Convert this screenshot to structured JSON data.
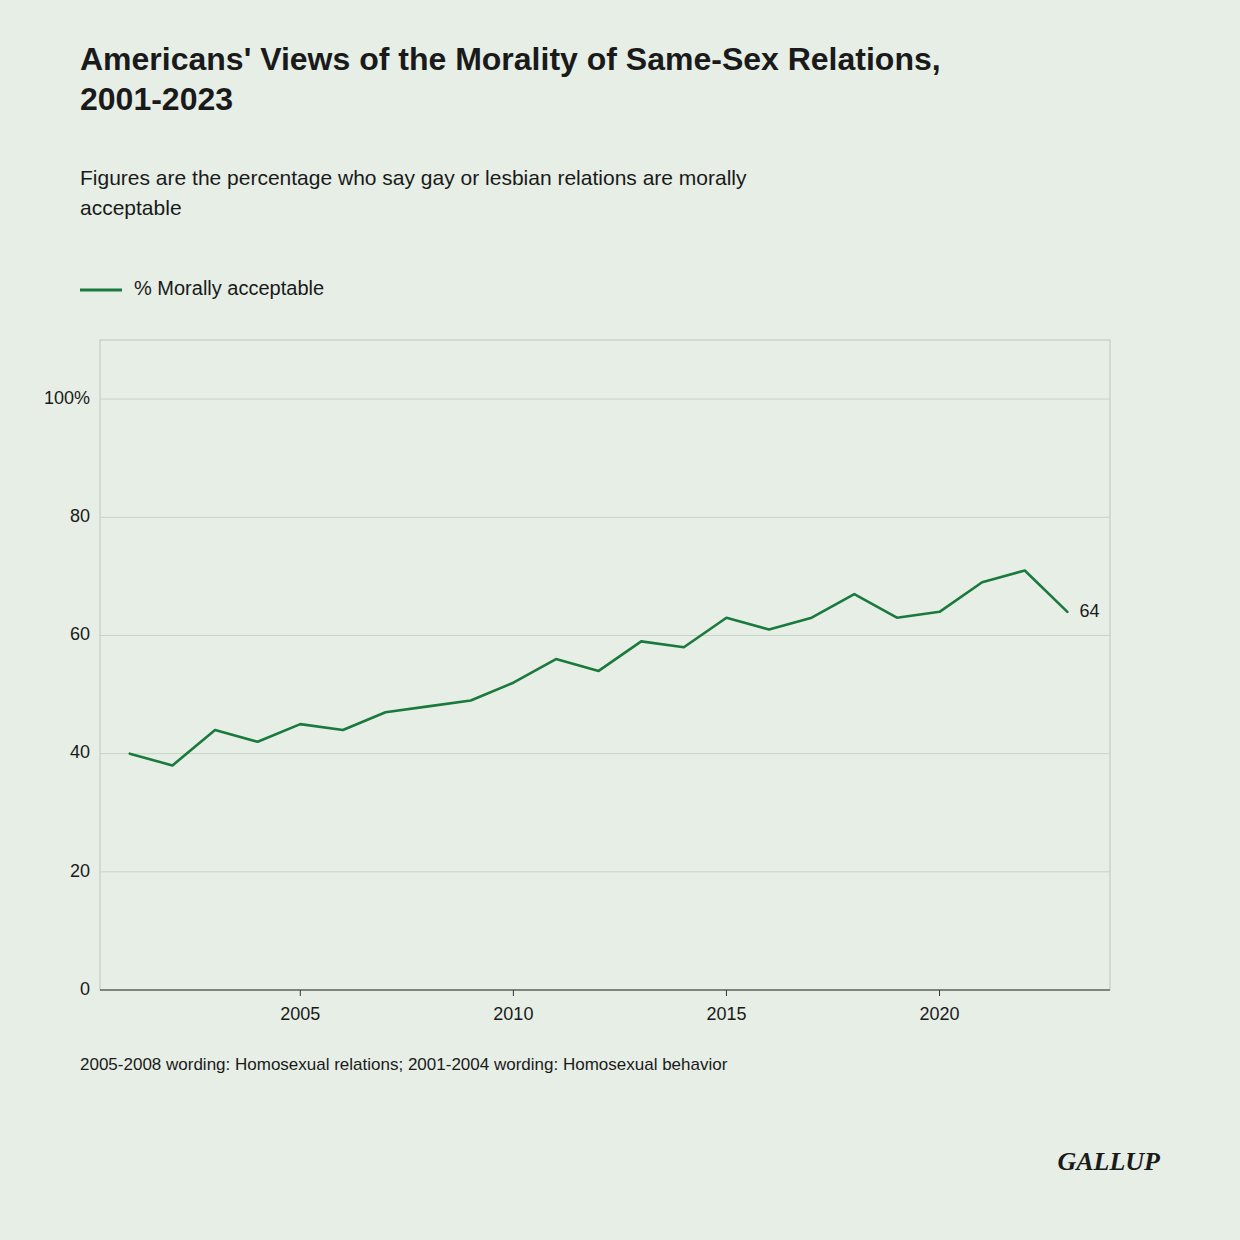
{
  "chart_data": {
    "type": "line",
    "title": "Americans' Views of the Morality of Same-Sex Relations,\n2001-2023",
    "subtitle": "Figures are the percentage who say gay or lesbian relations are morally\nacceptable",
    "footnote": "2005-2008 wording: Homosexual relations; 2001-2004 wording: Homosexual behavior",
    "source": "GALLUP",
    "x": [
      2001,
      2002,
      2003,
      2004,
      2005,
      2006,
      2007,
      2008,
      2009,
      2010,
      2011,
      2012,
      2013,
      2014,
      2015,
      2016,
      2017,
      2018,
      2019,
      2020,
      2021,
      2022,
      2023
    ],
    "series": [
      {
        "name": "% Morally acceptable",
        "color": "#1a7a3e",
        "values": [
          40,
          38,
          44,
          42,
          45,
          44,
          47,
          48,
          49,
          52,
          56,
          54,
          59,
          58,
          63,
          61,
          63,
          67,
          63,
          64,
          69,
          71,
          64
        ]
      }
    ],
    "xlim": [
      2000.3,
      2024.0
    ],
    "xticks": [
      2005,
      2010,
      2015,
      2020
    ],
    "ylim": [
      0,
      110
    ],
    "yticks": [
      0,
      20,
      40,
      60,
      80,
      {
        "value": 100,
        "label": "100%"
      }
    ],
    "grid": true,
    "legend": "top",
    "annotations": [
      {
        "text": "64",
        "x": 2023,
        "y": 64
      }
    ]
  }
}
